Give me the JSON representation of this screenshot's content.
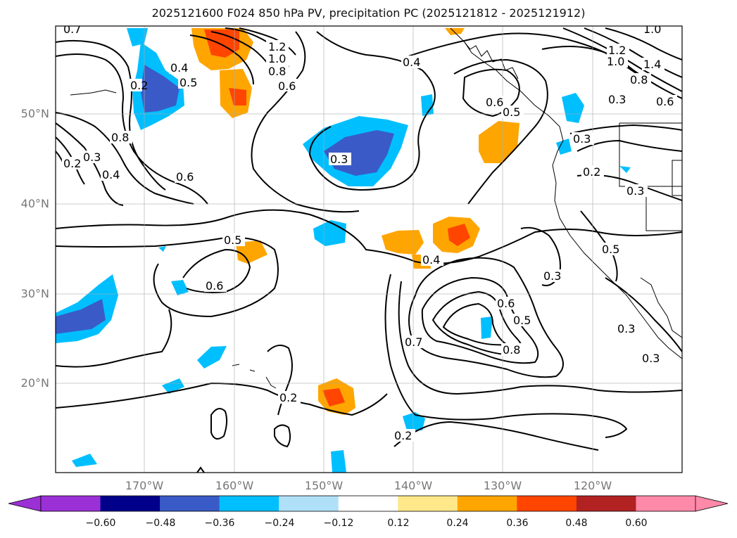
{
  "title": "2025121600 F024 850 hPa PV, precipitation PC (2025121812 - 2025121912)",
  "latitude_labels": [
    "50°N",
    "40°N",
    "30°N",
    "20°N"
  ],
  "longitude_labels": [
    "170°W",
    "160°W",
    "150°W",
    "140°W",
    "130°W",
    "120°W"
  ],
  "contour_labels": [
    "0.7",
    "0.4",
    "0.5",
    "0.2",
    "1.0",
    "0.8",
    "0.6",
    "1.2",
    "0.4",
    "0.6",
    "0.5",
    "0.3",
    "1.0",
    "1.2",
    "1.4",
    "1.0",
    "0.8",
    "0.6",
    "0.3",
    "0.8",
    "0.3",
    "0.4",
    "0.2",
    "0.6",
    "0.3",
    "0.2",
    "0.3",
    "0.5",
    "0.6",
    "0.4",
    "0.3",
    "0.5",
    "0.6",
    "0.7",
    "0.8",
    "0.5",
    "0.3",
    "0.3",
    "0.2",
    "0.2"
  ],
  "colorbar": {
    "ticks": [
      "−0.60",
      "−0.48",
      "−0.36",
      "−0.24",
      "−0.12",
      "0.12",
      "0.24",
      "0.36",
      "0.48",
      "0.60"
    ],
    "colors": [
      "#9b30d6",
      "#00008b",
      "#3a5bc7",
      "#00bfff",
      "#b0e0f8",
      "#ffffff",
      "#ffe88a",
      "#ffa500",
      "#ff4500",
      "#b22222",
      "#ff89a8"
    ]
  },
  "colors": {
    "negative_strong": "#3a5bc7",
    "negative": "#00bfff",
    "negative_light": "#b0e0f8",
    "positive_light": "#ffe88a",
    "positive": "#ffa500",
    "positive_strong": "#ff4500"
  }
}
